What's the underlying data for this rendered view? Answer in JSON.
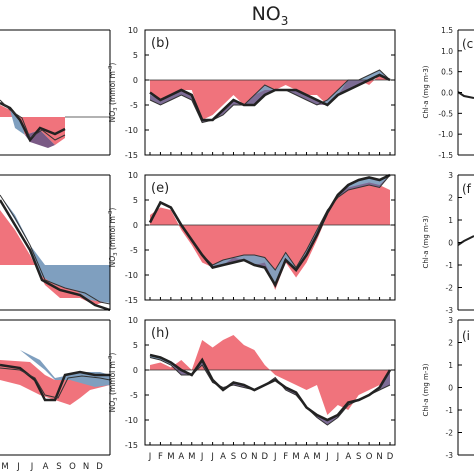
{
  "figure": {
    "title_main": "NO",
    "title_sub": "3",
    "colors": {
      "red_fill": "#f0737c",
      "blue_fill": "#7f9fbf",
      "purple_fill": "#7a5a85",
      "line_thick": "#222222",
      "line_thin": "#333333",
      "axis": "#000000"
    }
  },
  "chart_data": [
    {
      "panel": "b",
      "type": "area",
      "ylabel": "NO3 (mmol m-3)",
      "ylim": [
        -15,
        10
      ],
      "yticks": [
        "10",
        "5",
        "0",
        "-5",
        "-10",
        "-15"
      ],
      "reference_level": 0,
      "x": [
        0,
        1,
        2,
        3,
        4,
        5,
        6,
        7,
        8,
        9,
        10,
        11,
        12,
        13,
        14,
        15,
        16,
        17,
        18,
        19,
        20,
        21,
        22,
        23
      ],
      "series": [
        {
          "values": [
            -2.5,
            -4,
            -3,
            -2,
            -3,
            -8,
            -8,
            -6,
            -4,
            -5,
            -5,
            -3,
            -2,
            -2,
            -2,
            -3,
            -4,
            -5,
            -3,
            -2,
            -1,
            0,
            1,
            0
          ]
        },
        {
          "values": [
            -4,
            -5,
            -4,
            -3,
            -4,
            -8.5,
            -8,
            -7,
            -5,
            -5,
            -3,
            -1,
            -2,
            -2,
            -3,
            -4,
            -5,
            -4,
            -2,
            0,
            0,
            1,
            2,
            0
          ]
        },
        {
          "values": [
            -3,
            -4,
            -3,
            -2,
            -2,
            -8,
            -7,
            -5,
            -3,
            -5,
            -3,
            -2,
            -2,
            -1,
            -2,
            -3,
            -3,
            -5,
            -3,
            0,
            0,
            -1,
            1,
            0
          ]
        }
      ]
    },
    {
      "panel": "e",
      "type": "area",
      "ylabel": "NO3 (mmol m-3)",
      "ylim": [
        -15,
        10
      ],
      "yticks": [
        "10",
        "5",
        "0",
        "-5",
        "-10",
        "-15"
      ],
      "reference_level": 0,
      "x": [
        0,
        1,
        2,
        3,
        4,
        5,
        6,
        7,
        8,
        9,
        10,
        11,
        12,
        13,
        14,
        15,
        16,
        17,
        18,
        19,
        20,
        21,
        22,
        23
      ],
      "series": [
        {
          "values": [
            0.5,
            4.5,
            3.5,
            0,
            -3,
            -6,
            -8.5,
            -8,
            -7.5,
            -7,
            -8,
            -8.5,
            -12,
            -7,
            -9,
            -6,
            -2,
            2.5,
            6,
            8,
            9,
            9.5,
            9,
            10
          ]
        },
        {
          "values": [
            0.5,
            4.5,
            3.5,
            0,
            -3,
            -6,
            -8,
            -7,
            -6.5,
            -6,
            -6,
            -6.5,
            -9,
            -5.5,
            -8.5,
            -5,
            -1,
            3,
            5.5,
            7,
            7.5,
            8,
            7.5,
            10
          ]
        },
        {
          "values": [
            2,
            3.5,
            3,
            -1,
            -4,
            -7.5,
            -8.5,
            -8,
            -6.5,
            -7,
            -8,
            -7.5,
            -13,
            -7.5,
            -10.5,
            -7.5,
            -3,
            2,
            6,
            7.5,
            8,
            8.5,
            8,
            7
          ]
        }
      ]
    },
    {
      "panel": "h",
      "type": "area",
      "ylabel": "NO3 (mmol m-3)",
      "ylim": [
        -15,
        10
      ],
      "yticks": [
        "10",
        "5",
        "0",
        "-5",
        "-10",
        "-15"
      ],
      "reference_level": 0,
      "x": [
        0,
        1,
        2,
        3,
        4,
        5,
        6,
        7,
        8,
        9,
        10,
        11,
        12,
        13,
        14,
        15,
        16,
        17,
        18,
        19,
        20,
        21,
        22,
        23
      ],
      "series": [
        {
          "values": [
            3,
            2.5,
            1.5,
            0,
            -1,
            2,
            -2,
            -4,
            -2.5,
            -3,
            -4,
            -3,
            -2,
            -3.5,
            -4.5,
            -7.5,
            -9,
            -10,
            -9,
            -6.5,
            -6,
            -5,
            -3.5,
            0
          ]
        },
        {
          "values": [
            2.5,
            2,
            1,
            -1,
            -1,
            1,
            -2.5,
            -3.5,
            -3,
            -3.5,
            -4,
            -3,
            -1.5,
            -4,
            -5,
            -7.5,
            -9.5,
            -11,
            -9.5,
            -7,
            -6,
            -5,
            -4,
            -3
          ]
        },
        {
          "values": [
            1,
            1.5,
            0.5,
            2,
            0,
            6,
            4.5,
            6,
            7,
            5,
            4,
            1,
            -1,
            -2,
            -3,
            -4,
            -3,
            -9,
            -7,
            -8,
            -5,
            -4,
            -3,
            0
          ]
        }
      ]
    }
  ],
  "x_tick_labels": [
    "J",
    "F",
    "M",
    "A",
    "M",
    "J",
    "J",
    "A",
    "S",
    "O",
    "N",
    "D",
    "J",
    "F",
    "M",
    "A",
    "M",
    "J",
    "J",
    "A",
    "S",
    "O",
    "N",
    "D"
  ],
  "left_column": {
    "x_tick_labels": [
      "M",
      "J",
      "J",
      "A",
      "S",
      "O",
      "N",
      "D"
    ]
  },
  "right_column": {
    "ylabel": "Chl-a (mg m-3)",
    "panels": [
      {
        "label": "(c",
        "yticks": [
          "1.5",
          "1.0",
          "0.5",
          "0.0",
          "-0.5",
          "-1.0",
          "-1.5"
        ]
      },
      {
        "label": "(f",
        "yticks": [
          "3",
          "2",
          "1",
          "0",
          "-1",
          "-2",
          "-3"
        ]
      },
      {
        "label": "(i",
        "yticks": [
          "3",
          "2",
          "1",
          "0",
          "-1",
          "-2",
          "-3"
        ]
      }
    ]
  }
}
